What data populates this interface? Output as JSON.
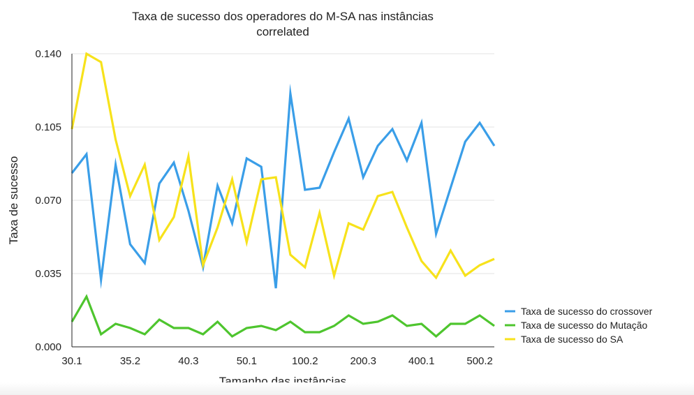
{
  "chart_data": {
    "type": "line",
    "title": "Taxa de sucesso dos operadores do M-SA nas instâncias correlated",
    "title_lines": [
      "Taxa de sucesso dos operadores do M-SA nas instâncias",
      "correlated"
    ],
    "xlabel": "Tamanho das instâncias",
    "ylabel": "Taxa de sucesso",
    "x_tick_labels": [
      "30.1",
      "35.2",
      "40.3",
      "50.1",
      "100.2",
      "200.3",
      "400.1",
      "500.2"
    ],
    "x_tick_positions": [
      0,
      4,
      8,
      12,
      16,
      20,
      24,
      28
    ],
    "point_count": 30,
    "y_ticks": [
      "0.000",
      "0.035",
      "0.070",
      "0.105",
      "0.140"
    ],
    "ylim": [
      0,
      0.14
    ],
    "grid": true,
    "legend_position": "right",
    "series": [
      {
        "name": "Taxa de sucesso do crossover",
        "color": "#3a9ee8",
        "values": [
          0.083,
          0.092,
          0.032,
          0.087,
          0.049,
          0.04,
          0.078,
          0.088,
          0.065,
          0.038,
          0.077,
          0.059,
          0.09,
          0.086,
          0.028,
          0.121,
          0.075,
          0.076,
          0.093,
          0.109,
          0.081,
          0.096,
          0.104,
          0.089,
          0.107,
          0.054,
          0.076,
          0.098,
          0.107,
          0.096
        ]
      },
      {
        "name": "Taxa de sucesso do Mutação",
        "color": "#4ec52e",
        "values": [
          0.012,
          0.024,
          0.006,
          0.011,
          0.009,
          0.006,
          0.013,
          0.009,
          0.009,
          0.006,
          0.012,
          0.005,
          0.009,
          0.01,
          0.008,
          0.012,
          0.007,
          0.007,
          0.01,
          0.015,
          0.011,
          0.012,
          0.015,
          0.01,
          0.011,
          0.005,
          0.011,
          0.011,
          0.015,
          0.01
        ]
      },
      {
        "name": "Taxa de sucesso do SA",
        "color": "#f7e21b",
        "values": [
          0.104,
          0.14,
          0.136,
          0.099,
          0.072,
          0.087,
          0.051,
          0.062,
          0.091,
          0.039,
          0.057,
          0.08,
          0.05,
          0.08,
          0.081,
          0.044,
          0.038,
          0.064,
          0.034,
          0.059,
          0.056,
          0.072,
          0.074,
          0.057,
          0.041,
          0.033,
          0.046,
          0.034,
          0.039,
          0.042
        ]
      }
    ]
  }
}
